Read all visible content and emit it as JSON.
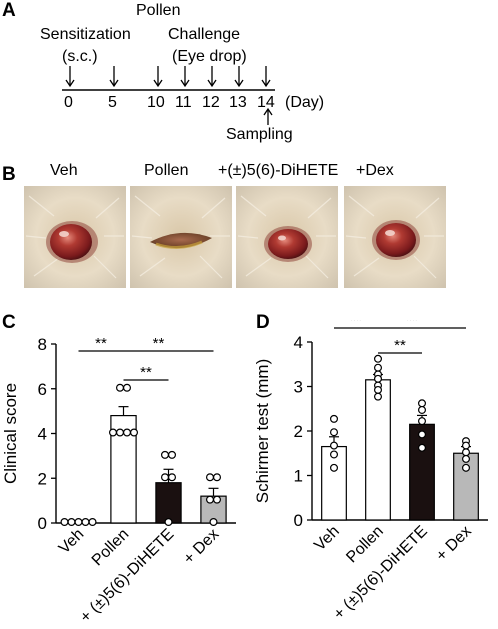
{
  "panelA": {
    "letter": "A",
    "pollen_label": "Pollen",
    "sensitization_label": "Sensitization",
    "sc_label": "(s.c.)",
    "challenge_label": "Challenge",
    "eyedrop_label": "(Eye drop)",
    "days": [
      "0",
      "5",
      "10",
      "11",
      "12",
      "13",
      "14"
    ],
    "day_unit": "(Day)",
    "sampling_label": "Sampling"
  },
  "panelB": {
    "letter": "B",
    "labels": [
      "Veh",
      "Pollen",
      "+(±)5(6)-DiHETE",
      "+Dex"
    ]
  },
  "colors": {
    "veh": "#ffffff",
    "pollen": "#ffffff",
    "dihete": "#1a1010",
    "dex": "#b8b8b8"
  },
  "chart_data": [
    {
      "type": "bar",
      "letter": "C",
      "title": "",
      "ylabel": "Clinical score",
      "xlabel": "",
      "categories": [
        "Veh",
        "Pollen",
        "+ (±)5(6)-DiHETE",
        "+ Dex"
      ],
      "values": [
        0,
        4.8,
        1.8,
        1.2
      ],
      "errors": [
        0,
        0.4,
        0.6,
        0.35
      ],
      "points": [
        [
          0,
          0,
          0,
          0,
          0
        ],
        [
          6,
          6,
          4,
          4,
          4,
          4
        ],
        [
          3,
          3,
          2,
          0,
          2
        ],
        [
          2,
          2,
          1,
          1,
          0
        ]
      ],
      "ylim": [
        0,
        8
      ],
      "yticks": [
        "0",
        "2",
        "4",
        "6",
        "8"
      ],
      "significance": [
        {
          "from": 0,
          "to": 1,
          "label": "**"
        },
        {
          "from": 1,
          "to": 2,
          "label": "**"
        },
        {
          "from": 1,
          "to": 3,
          "label": "**"
        }
      ]
    },
    {
      "type": "bar",
      "letter": "D",
      "title": "",
      "ylabel": "Schirmer test (mm)",
      "xlabel": "",
      "categories": [
        "Veh",
        "Pollen",
        "+ (±)5(6)-DiHETE",
        "+ Dex"
      ],
      "values": [
        1.65,
        3.15,
        2.15,
        1.5
      ],
      "errors": [
        0.22,
        0.12,
        0.2,
        0.15
      ],
      "points": [
        [
          2.25,
          1.95,
          1.65,
          1.45,
          1.15
        ],
        [
          3.6,
          3.4,
          3.25,
          3.15,
          3.0,
          2.9,
          2.75
        ],
        [
          2.6,
          2.45,
          2.2,
          1.9,
          1.6
        ],
        [
          1.75,
          1.65,
          1.5,
          1.35,
          1.15
        ]
      ],
      "ylim": [
        0,
        4
      ],
      "yticks": [
        "0",
        "1",
        "2",
        "3",
        "4"
      ],
      "significance": [
        {
          "from": 0,
          "to": 1,
          "label": "**"
        },
        {
          "from": 1,
          "to": 2,
          "label": "**"
        },
        {
          "from": 1,
          "to": 3,
          "label": "**"
        }
      ]
    }
  ]
}
